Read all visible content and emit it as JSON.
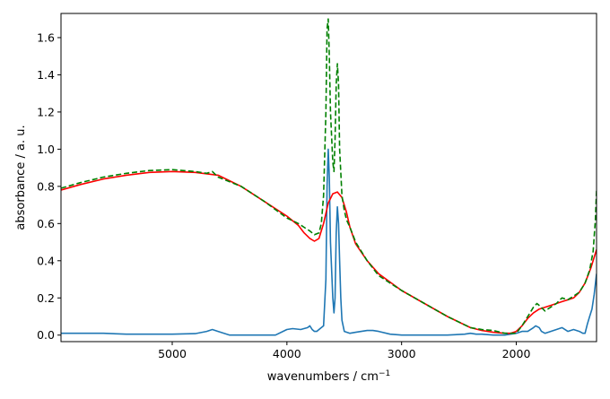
{
  "chart_data": {
    "type": "line",
    "title": "",
    "xlabel": "wavenumbers / cm",
    "xlabel_superscript": "−1",
    "ylabel": "absorbance / a. u.",
    "xlim": [
      5970,
      1300
    ],
    "ylim": [
      -0.035,
      1.73
    ],
    "x_reversed": true,
    "grid": false,
    "legend": "none",
    "xticks": [
      5000,
      4000,
      3000,
      2000
    ],
    "xtick_labels": [
      "5000",
      "4000",
      "3000",
      "2000"
    ],
    "yticks": [
      0.0,
      0.2,
      0.4,
      0.6,
      0.8,
      1.0,
      1.2,
      1.4,
      1.6
    ],
    "ytick_labels": [
      "0.0",
      "0.2",
      "0.4",
      "0.6",
      "0.8",
      "1.0",
      "1.2",
      "1.4",
      "1.6"
    ],
    "series": [
      {
        "color": "#1f77b4",
        "linestyle": "solid",
        "x": [
          5970,
          5800,
          5600,
          5400,
          5200,
          5000,
          4800,
          4700,
          4650,
          4600,
          4500,
          4300,
          4100,
          4000,
          3950,
          3880,
          3820,
          3800,
          3780,
          3760,
          3740,
          3720,
          3700,
          3680,
          3660,
          3650,
          3640,
          3630,
          3620,
          3600,
          3590,
          3580,
          3570,
          3560,
          3550,
          3540,
          3530,
          3520,
          3500,
          3450,
          3400,
          3350,
          3300,
          3250,
          3200,
          3100,
          3000,
          2800,
          2600,
          2450,
          2400,
          2350,
          2300,
          2200,
          2100,
          2000,
          1950,
          1900,
          1850,
          1830,
          1800,
          1780,
          1750,
          1700,
          1650,
          1600,
          1550,
          1500,
          1450,
          1420,
          1400,
          1380,
          1360,
          1340,
          1320,
          1300
        ],
        "values": [
          0.01,
          0.01,
          0.01,
          0.005,
          0.005,
          0.005,
          0.008,
          0.02,
          0.03,
          0.02,
          0.0,
          0.0,
          0.0,
          0.03,
          0.035,
          0.03,
          0.04,
          0.05,
          0.03,
          0.02,
          0.02,
          0.03,
          0.04,
          0.05,
          0.3,
          0.8,
          1.0,
          0.85,
          0.5,
          0.2,
          0.12,
          0.2,
          0.55,
          0.69,
          0.6,
          0.4,
          0.2,
          0.08,
          0.02,
          0.01,
          0.015,
          0.02,
          0.025,
          0.025,
          0.02,
          0.005,
          0.0,
          0.0,
          0.0,
          0.005,
          0.01,
          0.005,
          0.005,
          0.0,
          0.0,
          0.01,
          0.02,
          0.02,
          0.04,
          0.05,
          0.04,
          0.02,
          0.01,
          0.02,
          0.03,
          0.04,
          0.02,
          0.03,
          0.02,
          0.01,
          0.01,
          0.06,
          0.1,
          0.14,
          0.22,
          0.33
        ]
      },
      {
        "color": "#ff0000",
        "linestyle": "solid",
        "x": [
          5970,
          5800,
          5600,
          5400,
          5200,
          5000,
          4800,
          4600,
          4400,
          4200,
          4000,
          3900,
          3850,
          3800,
          3760,
          3720,
          3680,
          3640,
          3600,
          3560,
          3520,
          3480,
          3450,
          3400,
          3300,
          3200,
          3000,
          2800,
          2600,
          2400,
          2300,
          2200,
          2100,
          2050,
          2000,
          1950,
          1900,
          1850,
          1800,
          1700,
          1600,
          1500,
          1450,
          1400,
          1350,
          1300
        ],
        "values": [
          0.78,
          0.81,
          0.84,
          0.86,
          0.875,
          0.88,
          0.875,
          0.86,
          0.8,
          0.72,
          0.64,
          0.59,
          0.55,
          0.52,
          0.505,
          0.52,
          0.6,
          0.71,
          0.76,
          0.77,
          0.74,
          0.66,
          0.58,
          0.49,
          0.4,
          0.33,
          0.24,
          0.17,
          0.1,
          0.04,
          0.025,
          0.015,
          0.01,
          0.01,
          0.02,
          0.05,
          0.09,
          0.12,
          0.14,
          0.16,
          0.18,
          0.2,
          0.23,
          0.28,
          0.36,
          0.46
        ]
      },
      {
        "color": "#008000",
        "linestyle": "dashed",
        "x": [
          5970,
          5800,
          5600,
          5400,
          5200,
          5000,
          4800,
          4700,
          4650,
          4600,
          4400,
          4200,
          4000,
          3900,
          3850,
          3800,
          3760,
          3720,
          3700,
          3680,
          3660,
          3650,
          3640,
          3630,
          3620,
          3600,
          3590,
          3580,
          3570,
          3560,
          3550,
          3540,
          3520,
          3500,
          3480,
          3450,
          3400,
          3300,
          3200,
          3000,
          2800,
          2600,
          2400,
          2300,
          2200,
          2100,
          2000,
          1950,
          1900,
          1850,
          1820,
          1800,
          1750,
          1700,
          1650,
          1620,
          1600,
          1550,
          1500,
          1450,
          1400,
          1360,
          1330,
          1310,
          1300
        ],
        "values": [
          0.79,
          0.82,
          0.85,
          0.87,
          0.885,
          0.89,
          0.88,
          0.87,
          0.88,
          0.85,
          0.8,
          0.72,
          0.63,
          0.6,
          0.58,
          0.56,
          0.54,
          0.55,
          0.6,
          0.75,
          1.2,
          1.65,
          1.7,
          1.5,
          1.2,
          0.93,
          0.88,
          1.05,
          1.35,
          1.46,
          1.35,
          1.0,
          0.75,
          0.67,
          0.62,
          0.58,
          0.5,
          0.4,
          0.32,
          0.24,
          0.17,
          0.1,
          0.04,
          0.03,
          0.025,
          0.01,
          0.01,
          0.05,
          0.1,
          0.15,
          0.17,
          0.16,
          0.13,
          0.15,
          0.17,
          0.19,
          0.2,
          0.19,
          0.21,
          0.23,
          0.28,
          0.35,
          0.45,
          0.62,
          0.78
        ]
      }
    ]
  }
}
